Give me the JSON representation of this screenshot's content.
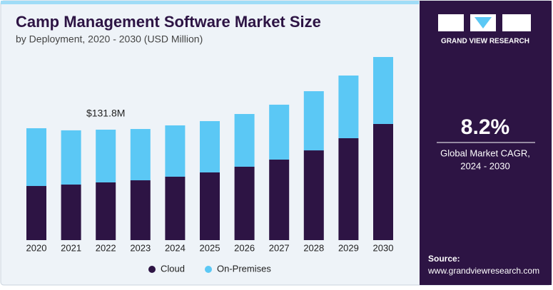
{
  "chart_data": {
    "type": "stacked_bar",
    "title": "Camp Management Software Market Size",
    "subtitle": "by Deployment, 2020 - 2030 (USD Million)",
    "categories": [
      "2020",
      "2021",
      "2022",
      "2023",
      "2024",
      "2025",
      "2026",
      "2027",
      "2028",
      "2029",
      "2030"
    ],
    "series": [
      {
        "name": "Cloud",
        "color": "#2d1444",
        "values": [
          64.6,
          66.3,
          68.9,
          71.4,
          75.7,
          80.8,
          87.6,
          96.1,
          107.1,
          121.6,
          138.6
        ]
      },
      {
        "name": "On-Premises",
        "color": "#5bc8f5",
        "values": [
          68.9,
          64.7,
          62.9,
          61.2,
          61.2,
          61.2,
          62.9,
          65.5,
          70.6,
          74.8,
          79.9
        ]
      }
    ],
    "annotation": {
      "text": "$131.8M",
      "category": "2022"
    },
    "legend": "bottom"
  },
  "panel": {
    "brand": "GRAND VIEW RESEARCH",
    "cagr": "8.2%",
    "cagr_label": [
      "Global Market CAGR,",
      "2024 - 2030"
    ],
    "source_label": "Source:",
    "source": "www.grandviewresearch.com"
  }
}
